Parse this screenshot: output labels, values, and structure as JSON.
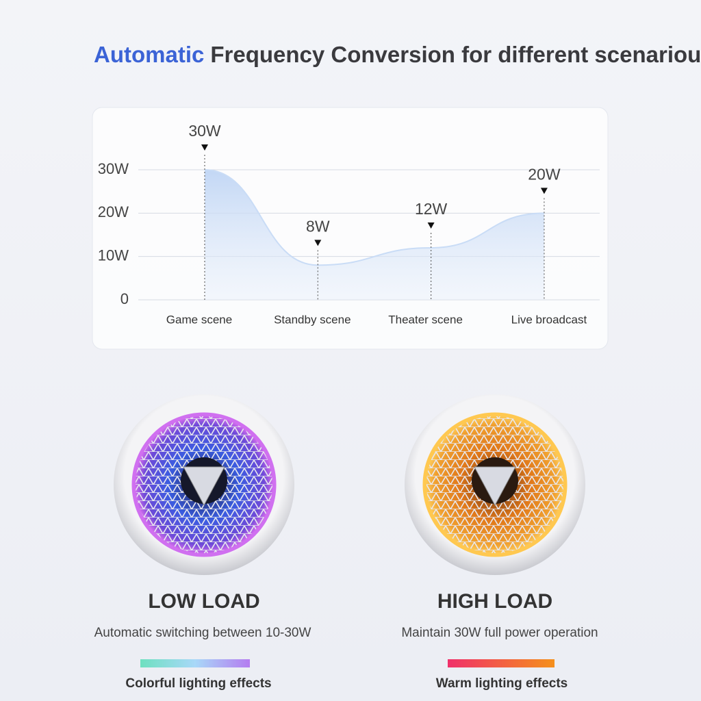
{
  "header": {
    "title_highlight": "Automatic",
    "title_rest": "Frequency Conversion for different scenarious"
  },
  "chart_data": {
    "type": "area",
    "categories": [
      "Game scene",
      "Standby scene",
      "Theater scene",
      "Live broadcast"
    ],
    "values": [
      30,
      8,
      12,
      20
    ],
    "value_labels": [
      "30W",
      "8W",
      "12W",
      "20W"
    ],
    "color": "#c9dcf6",
    "ylim": [
      0,
      30
    ],
    "yticks": [
      {
        "value": 0,
        "label": "0"
      },
      {
        "value": 10,
        "label": "10W"
      },
      {
        "value": 20,
        "label": "20W"
      },
      {
        "value": 30,
        "label": "30W"
      }
    ],
    "grid": true
  },
  "panels": [
    {
      "title": "LOW LOAD",
      "description": "Automatic switching between 10-30W",
      "caption": "Colorful lighting effects"
    },
    {
      "title": "HIGH LOAD",
      "description": "Maintain 30W full power operation",
      "caption": "Warm lighting effects"
    }
  ]
}
